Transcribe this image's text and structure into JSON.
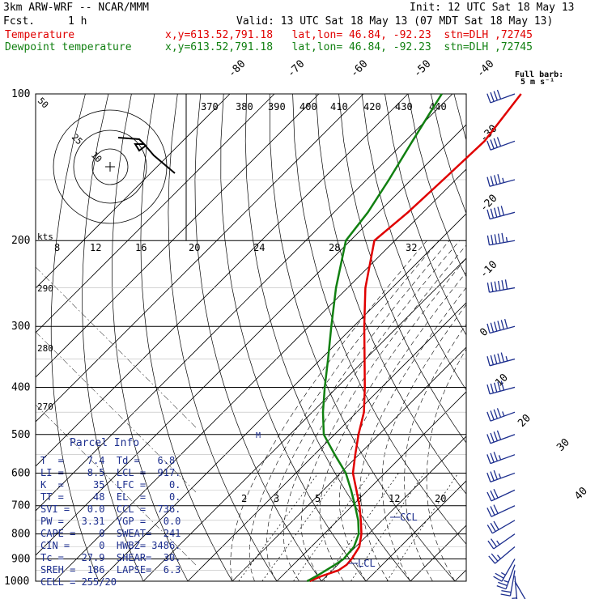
{
  "header": {
    "model": "3km ARW-WRF -- NCAR/MMM",
    "init": "Init: 12 UTC Sat 18 May 13",
    "fcst_label": "Fcst.",
    "fcst_value": "1 h",
    "valid": "Valid: 13 UTC Sat 18 May 13 (07 MDT Sat 18 May 13)",
    "temp_label": "Temperature",
    "dewp_label": "Dewpoint temperature",
    "loc_text": "x,y=613.52,791.18   lat,lon= 46.84, -92.23  stn=DLH ,72745"
  },
  "colors": {
    "temperature": "#e00000",
    "dewpoint": "#118011",
    "parcel_text": "#1c2e8e",
    "barbs": "#1c2e8e",
    "grid": "#000000"
  },
  "barb_legend": [
    "Full barb:",
    "5 m s⁻¹"
  ],
  "parcel_info": {
    "title": "Parcel Info",
    "rows": [
      "T  =    7.4  Td =   6.8",
      "LI =    8.5  LCL =  917.",
      "K  =     35  LFC =    0.",
      "TT =     48  EL  =    0.",
      "SVI =   0.0  CCL =  736.",
      "PW =   3.31  YGP =   0.0",
      "CAPE =    0  SWEAT=  241",
      "CIN =     0  HWBZ= 3486.",
      "Tc =   27.9  SHEAR=  30.",
      "SREH =  186  LAPSE=  6.3",
      "CELL = 255/20"
    ]
  },
  "chart_data": {
    "type": "line",
    "title": "",
    "xlabel": "",
    "ylabel": "",
    "pressure_levels": [
      "100",
      "200",
      "300",
      "400",
      "500",
      "600",
      "700",
      "800",
      "900",
      "1000"
    ],
    "skew_temp_labels": [
      "-80",
      "-70",
      "-60",
      "-50",
      "-40",
      "-30",
      "-20",
      "-10",
      "0",
      "10",
      "20",
      "30",
      "40"
    ],
    "theta_labels": [
      "370",
      "380",
      "390",
      "400",
      "410",
      "420",
      "430",
      "440"
    ],
    "mixing_ratio_labels": [
      "2",
      "3",
      "5",
      "8",
      "12",
      "20"
    ],
    "knot_label": "kts",
    "isotach_labels": [
      "8",
      "12",
      "16",
      "20",
      "24",
      "28",
      "32"
    ],
    "height_labels": [
      "290",
      "280",
      "270"
    ],
    "hodograph_ring_labels": [
      "50",
      "25",
      "10"
    ],
    "annotations": [
      "LCL",
      "CCL",
      "M"
    ],
    "series": [
      {
        "name": "Temperature",
        "points": [
          [
            1000,
            7.4
          ],
          [
            975,
            9.0
          ],
          [
            950,
            11.4
          ],
          [
            925,
            12.0
          ],
          [
            900,
            11.8
          ],
          [
            850,
            10.8
          ],
          [
            800,
            8.4
          ],
          [
            750,
            5.2
          ],
          [
            700,
            1.6
          ],
          [
            650,
            -2.6
          ],
          [
            600,
            -7.2
          ],
          [
            550,
            -10.8
          ],
          [
            500,
            -14.6
          ],
          [
            450,
            -18.4
          ],
          [
            400,
            -23.8
          ],
          [
            350,
            -30.2
          ],
          [
            300,
            -37.6
          ],
          [
            250,
            -46.0
          ],
          [
            200,
            -54.6
          ],
          [
            175,
            -53.4
          ],
          [
            150,
            -52.8
          ],
          [
            125,
            -52.2
          ],
          [
            100,
            -54.6
          ]
        ]
      },
      {
        "name": "Dewpoint temperature",
        "points": [
          [
            1000,
            6.8
          ],
          [
            975,
            7.8
          ],
          [
            950,
            8.6
          ],
          [
            925,
            9.4
          ],
          [
            900,
            10.0
          ],
          [
            850,
            9.6
          ],
          [
            800,
            7.8
          ],
          [
            750,
            4.6
          ],
          [
            700,
            0.6
          ],
          [
            650,
            -3.8
          ],
          [
            600,
            -8.8
          ],
          [
            550,
            -15.4
          ],
          [
            500,
            -22.4
          ],
          [
            450,
            -27.6
          ],
          [
            400,
            -32.8
          ],
          [
            350,
            -38.4
          ],
          [
            300,
            -45.0
          ],
          [
            250,
            -52.6
          ],
          [
            200,
            -61.0
          ],
          [
            175,
            -62.4
          ],
          [
            150,
            -65.0
          ],
          [
            125,
            -68.4
          ],
          [
            100,
            -72.4
          ]
        ]
      }
    ],
    "wind_profile": [
      {
        "p": 1000,
        "dir": 150,
        "spd_kt": 10
      },
      {
        "p": 975,
        "dir": 175,
        "spd_kt": 15
      },
      {
        "p": 950,
        "dir": 190,
        "spd_kt": 20
      },
      {
        "p": 925,
        "dir": 200,
        "spd_kt": 25
      },
      {
        "p": 900,
        "dir": 210,
        "spd_kt": 25
      },
      {
        "p": 850,
        "dir": 230,
        "spd_kt": 25
      },
      {
        "p": 800,
        "dir": 235,
        "spd_kt": 25
      },
      {
        "p": 750,
        "dir": 240,
        "spd_kt": 30
      },
      {
        "p": 700,
        "dir": 245,
        "spd_kt": 30
      },
      {
        "p": 650,
        "dir": 245,
        "spd_kt": 30
      },
      {
        "p": 600,
        "dir": 250,
        "spd_kt": 35
      },
      {
        "p": 550,
        "dir": 250,
        "spd_kt": 35
      },
      {
        "p": 500,
        "dir": 250,
        "spd_kt": 40
      },
      {
        "p": 450,
        "dir": 250,
        "spd_kt": 45
      },
      {
        "p": 400,
        "dir": 255,
        "spd_kt": 50
      },
      {
        "p": 350,
        "dir": 255,
        "spd_kt": 55
      },
      {
        "p": 300,
        "dir": 255,
        "spd_kt": 60
      },
      {
        "p": 250,
        "dir": 260,
        "spd_kt": 60
      },
      {
        "p": 200,
        "dir": 260,
        "spd_kt": 55
      },
      {
        "p": 175,
        "dir": 255,
        "spd_kt": 50
      },
      {
        "p": 150,
        "dir": 255,
        "spd_kt": 45
      },
      {
        "p": 125,
        "dir": 250,
        "spd_kt": 40
      },
      {
        "p": 100,
        "dir": 250,
        "spd_kt": 40
      }
    ]
  }
}
